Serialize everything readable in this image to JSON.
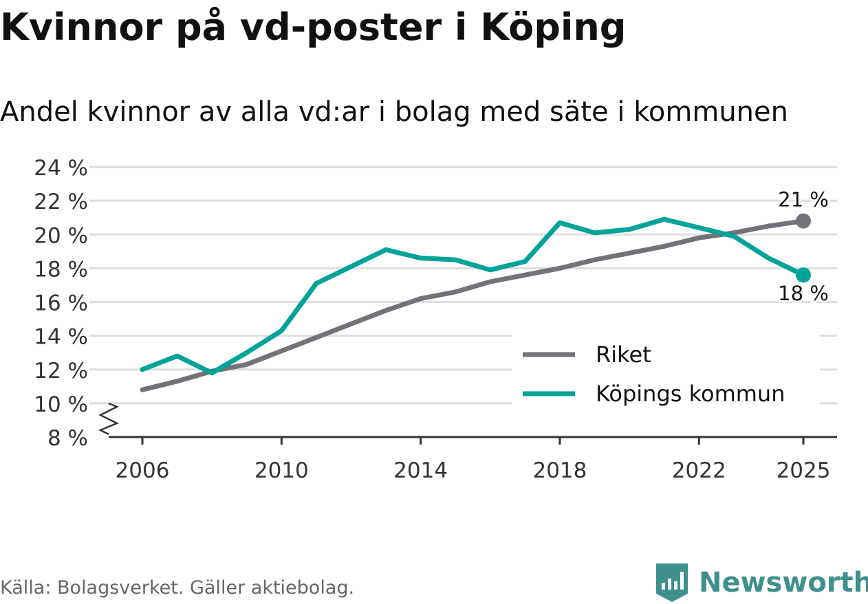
{
  "title": "Kvinnor på vd-poster i Köping",
  "subtitle": "Andel kvinnor av alla vd:ar i bolag med säte i kommunen",
  "source": "Källa: Bolagsverket. Gäller aktiebolag.",
  "brand": "Newsworthy",
  "colors": {
    "riket": "#747278",
    "kommun": "#00a39a",
    "grid": "#dddddd",
    "axis": "#333333",
    "brand": "#3f8f8c"
  },
  "chart_data": {
    "type": "line",
    "title": "Kvinnor på vd-poster i Köping",
    "subtitle": "Andel kvinnor av alla vd:ar i bolag med säte i kommunen",
    "xlabel": "",
    "ylabel": "",
    "ylim": [
      8,
      24
    ],
    "xlim": [
      2006,
      2025
    ],
    "y_ticks": [
      8,
      10,
      12,
      14,
      16,
      18,
      20,
      22,
      24
    ],
    "y_tick_labels": [
      "8 %",
      "10 %",
      "12 %",
      "14 %",
      "16 %",
      "18 %",
      "20 %",
      "22 %",
      "24 %"
    ],
    "x_ticks": [
      2006,
      2010,
      2014,
      2018,
      2022,
      2025
    ],
    "x_tick_labels": [
      "2006",
      "2010",
      "2014",
      "2018",
      "2022",
      "2025"
    ],
    "axis_break": true,
    "grid": true,
    "legend_position": "bottom-right",
    "x": [
      2006,
      2007,
      2008,
      2009,
      2010,
      2011,
      2012,
      2013,
      2014,
      2015,
      2016,
      2017,
      2018,
      2019,
      2020,
      2021,
      2022,
      2023,
      2024,
      2025
    ],
    "series": [
      {
        "name": "Riket",
        "color": "#747278",
        "values": [
          10.8,
          11.3,
          11.9,
          12.3,
          13.1,
          13.9,
          14.7,
          15.5,
          16.2,
          16.6,
          17.2,
          17.6,
          18.0,
          18.5,
          18.9,
          19.3,
          19.8,
          20.1,
          20.5,
          20.8
        ],
        "end_label": "21 %",
        "end_label_position": "above"
      },
      {
        "name": "Köpings kommun",
        "color": "#00a39a",
        "values": [
          12.0,
          12.8,
          11.8,
          13.0,
          14.3,
          17.1,
          18.1,
          19.1,
          18.6,
          18.5,
          17.9,
          18.4,
          20.7,
          20.1,
          20.3,
          20.9,
          20.4,
          19.9,
          18.6,
          17.6
        ],
        "end_label": "18 %",
        "end_label_position": "below"
      }
    ]
  }
}
